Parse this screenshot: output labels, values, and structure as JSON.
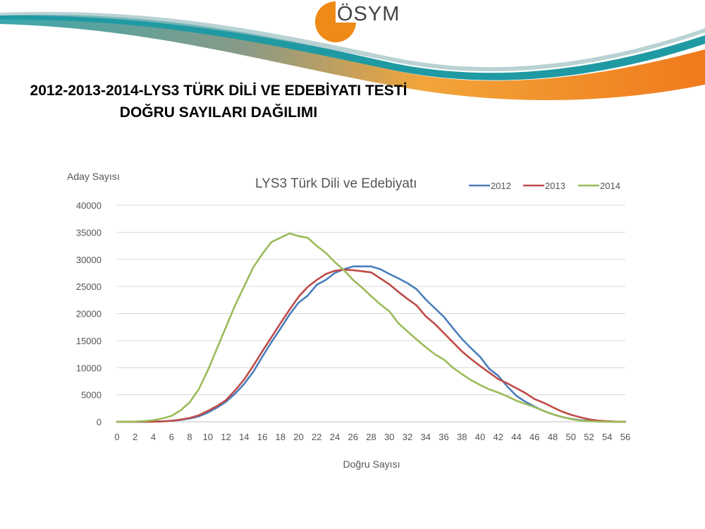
{
  "logo": {
    "text": "ÖSYM"
  },
  "slide": {
    "title_line1": "2012-2013-2014-LYS3 TÜRK DİLİ VE EDEBİYATI TESTİ",
    "title_line2": "DOĞRU SAYILARI DAĞILIMI"
  },
  "colors": {
    "banner_teal": "#1f9aa3",
    "banner_orange": "#f39c2a",
    "logo_orange": "#ef8a17"
  },
  "chart_data": {
    "type": "line",
    "title": "LYS3 Türk Dili ve Edebiyatı",
    "xlabel": "Doğru Sayısı",
    "ylabel": "Aday Sayısı",
    "xlim": [
      0,
      56
    ],
    "ylim": [
      0,
      40000
    ],
    "y_ticks": [
      0,
      5000,
      10000,
      15000,
      20000,
      25000,
      30000,
      35000,
      40000
    ],
    "x_ticks": [
      0,
      2,
      4,
      6,
      8,
      10,
      12,
      14,
      16,
      18,
      20,
      22,
      24,
      26,
      28,
      30,
      32,
      34,
      36,
      38,
      40,
      42,
      44,
      46,
      48,
      50,
      52,
      54,
      56
    ],
    "grid": true,
    "legend_position": "top-right",
    "x": [
      0,
      1,
      2,
      3,
      4,
      5,
      6,
      7,
      8,
      9,
      10,
      11,
      12,
      13,
      14,
      15,
      16,
      17,
      18,
      19,
      20,
      21,
      22,
      23,
      24,
      25,
      26,
      27,
      28,
      29,
      30,
      31,
      32,
      33,
      34,
      35,
      36,
      37,
      38,
      39,
      40,
      41,
      42,
      43,
      44,
      45,
      46,
      47,
      48,
      49,
      50,
      51,
      52,
      53,
      54,
      55,
      56
    ],
    "series": [
      {
        "name": "2012",
        "color": "#4a7ebb",
        "values": [
          0,
          0,
          0,
          10,
          30,
          80,
          180,
          350,
          600,
          1000,
          1700,
          2600,
          3700,
          5200,
          7000,
          9200,
          12000,
          14700,
          17200,
          19800,
          22000,
          23300,
          25300,
          26200,
          27500,
          28200,
          28700,
          28700,
          28700,
          28200,
          27300,
          26500,
          25600,
          24500,
          22600,
          21000,
          19400,
          17300,
          15300,
          13600,
          12000,
          9800,
          8500,
          6500,
          4800,
          3700,
          2800,
          2000,
          1400,
          900,
          550,
          320,
          170,
          80,
          30,
          10,
          0
        ]
      },
      {
        "name": "2013",
        "color": "#be4b48",
        "values": [
          0,
          0,
          0,
          10,
          30,
          80,
          200,
          400,
          700,
          1200,
          2000,
          2900,
          4000,
          5800,
          7800,
          10300,
          13000,
          15600,
          18200,
          20700,
          23100,
          24900,
          26200,
          27300,
          27900,
          28100,
          28000,
          27800,
          27600,
          26500,
          25400,
          24000,
          22700,
          21500,
          19500,
          18100,
          16400,
          14700,
          13000,
          11600,
          10300,
          9100,
          7900,
          7100,
          6200,
          5300,
          4200,
          3500,
          2700,
          1900,
          1300,
          850,
          450,
          220,
          100,
          30,
          0
        ]
      },
      {
        "name": "2014",
        "color": "#9bbb59",
        "values": [
          0,
          10,
          40,
          120,
          300,
          600,
          1100,
          2100,
          3600,
          6000,
          9500,
          13500,
          17500,
          21500,
          25000,
          28500,
          31000,
          33200,
          34000,
          34800,
          34300,
          34000,
          32500,
          31200,
          29500,
          28000,
          26200,
          24800,
          23200,
          21700,
          20400,
          18200,
          16700,
          15200,
          13800,
          12500,
          11500,
          10000,
          8800,
          7700,
          6800,
          6000,
          5400,
          4700,
          3900,
          3300,
          2700,
          2000,
          1400,
          900,
          500,
          250,
          100,
          40,
          10,
          0,
          0
        ]
      }
    ]
  }
}
